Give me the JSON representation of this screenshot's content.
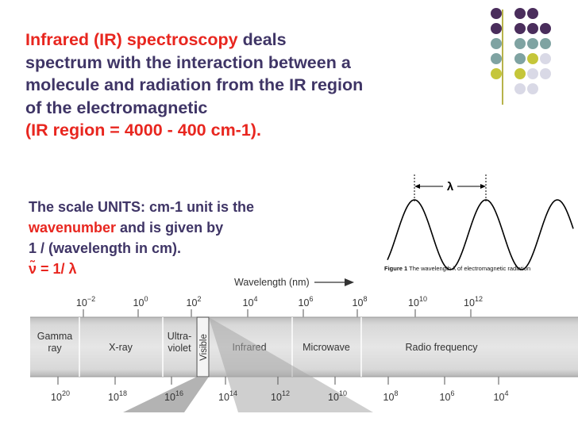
{
  "slide": {
    "title_red": "Infrared (IR) spectroscopy",
    "title_rest": " deals",
    "line2": "spectrum with the interaction between a",
    "line3": "molecule and radiation from the IR region",
    "line4": "of the electromagnetic",
    "ir_region": "(IR region = 4000 - 400 cm-1).",
    "units_line1": "The scale UNITS:  cm-1 unit is the",
    "wavenumber": "wavenumber",
    "units_line2_rest": " and is given by",
    "units_line3": "1 / (wavelength in cm).",
    "formula": "ν̃ = 1/ λ"
  },
  "wave_figure": {
    "lambda_label": "λ",
    "caption_bold": "Figure 1",
    "caption_rest": " The wavelength λ of electromagnetic radiation"
  },
  "spectrum": {
    "axis_label": "Wavelength (nm)",
    "top_ticks": [
      {
        "base": "10",
        "exp": "−2"
      },
      {
        "base": "10",
        "exp": "0"
      },
      {
        "base": "10",
        "exp": "2"
      },
      {
        "base": "10",
        "exp": "4"
      },
      {
        "base": "10",
        "exp": "6"
      },
      {
        "base": "10",
        "exp": "8"
      },
      {
        "base": "10",
        "exp": "10"
      },
      {
        "base": "10",
        "exp": "12"
      }
    ],
    "bottom_ticks": [
      {
        "base": "10",
        "exp": "20"
      },
      {
        "base": "10",
        "exp": "18"
      },
      {
        "base": "10",
        "exp": "16"
      },
      {
        "base": "10",
        "exp": "14"
      },
      {
        "base": "10",
        "exp": "12"
      },
      {
        "base": "10",
        "exp": "10"
      },
      {
        "base": "10",
        "exp": "8"
      },
      {
        "base": "10",
        "exp": "6"
      },
      {
        "base": "10",
        "exp": "4"
      }
    ],
    "regions": [
      {
        "lines": [
          "Gamma",
          "ray"
        ]
      },
      {
        "lines": [
          "X-ray"
        ]
      },
      {
        "lines": [
          "Ultra-",
          "violet"
        ]
      },
      {
        "lines": [
          "Visible"
        ]
      },
      {
        "lines": [
          "Infrared"
        ]
      },
      {
        "lines": [
          "Microwave"
        ]
      },
      {
        "lines": [
          "Radio frequency"
        ]
      }
    ]
  },
  "colors": {
    "text_dark": "#3f3566",
    "accent_red": "#e8261f",
    "dot_purple": "#4a2d5c",
    "dot_teal": "#7fa3a2",
    "dot_yellow": "#c5c63a",
    "dot_grey": "#d9d9e6"
  }
}
